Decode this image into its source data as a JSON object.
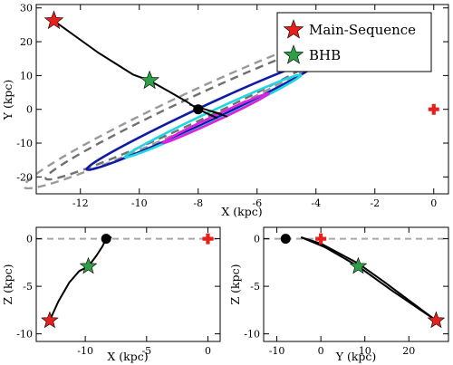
{
  "colors": {
    "main_sequence": "#e8201b",
    "bhb": "#2e9f45",
    "sun": "#e8201b",
    "contour_blue": "#0f1aa8",
    "contour_cyan": "#22d6e0",
    "contour_magenta": "#dd22dd",
    "contour_gray": "#9a9a9a",
    "contour_darkgray": "#707070",
    "orbit": "#000000",
    "zero_line": "#a8a8a8"
  },
  "chart_data": [
    {
      "id": "top",
      "type": "scatter",
      "xlabel": "X (kpc)",
      "ylabel": "Y (kpc)",
      "xlim": [
        -13.5,
        0.5
      ],
      "ylim": [
        -25,
        31
      ],
      "xticks": [
        -12,
        -10,
        -8,
        -6,
        -4,
        -2,
        0
      ],
      "yticks": [
        -20,
        -10,
        0,
        10,
        20,
        30
      ],
      "legend": {
        "position": "top-right",
        "entries": [
          {
            "label": "Main-Sequence",
            "marker": "star",
            "color": "#e8201b"
          },
          {
            "label": "BHB",
            "marker": "star",
            "color": "#2e9f45"
          }
        ]
      },
      "points": [
        {
          "name": "main-sequence-star",
          "x": -12.9,
          "y": 26.2,
          "marker": "star",
          "color": "#e8201b"
        },
        {
          "name": "bhb-star",
          "x": -9.65,
          "y": 8.5,
          "marker": "star",
          "color": "#2e9f45"
        },
        {
          "name": "current-position",
          "x": -8.0,
          "y": 0.0,
          "marker": "circle",
          "color": "#000000"
        },
        {
          "name": "sun",
          "x": 0.0,
          "y": 0.0,
          "marker": "cross",
          "color": "#e8201b"
        }
      ],
      "orbit": [
        [
          -12.9,
          26.2
        ],
        [
          -11.4,
          16.8
        ],
        [
          -10.2,
          10.2
        ],
        [
          -9.65,
          8.5
        ],
        [
          -9.0,
          5.3
        ],
        [
          -8.4,
          2.3
        ],
        [
          -8.0,
          0.0
        ],
        [
          -7.6,
          -1.6
        ],
        [
          -7.35,
          -2.6
        ]
      ],
      "contours": [
        {
          "name": "contour-outer-gray",
          "color": "#9a9a9a",
          "dashed": true,
          "cx": -8.2,
          "cy": 0.2,
          "rx": 6.3,
          "ry": 4.8,
          "tilt": -25
        },
        {
          "name": "contour-darkgray",
          "color": "#707070",
          "dashed": true,
          "cx": -8.1,
          "cy": 0.1,
          "rx": 5.6,
          "ry": 3.6,
          "tilt": -25
        },
        {
          "name": "contour-blue",
          "color": "#0f1aa8",
          "dashed": false,
          "cx": -7.8,
          "cy": -1.6,
          "rx": 4.4,
          "ry": 2.35,
          "tilt": -25
        },
        {
          "name": "contour-cyan",
          "color": "#22d6e0",
          "dashed": false,
          "cx": -7.5,
          "cy": -2.0,
          "rx": 3.3,
          "ry": 1.5,
          "tilt": -25
        },
        {
          "name": "contour-magenta",
          "color": "#dd22dd",
          "dashed": false,
          "cx": -7.4,
          "cy": -2.6,
          "rx": 2.0,
          "ry": 0.8,
          "tilt": -25
        }
      ]
    },
    {
      "id": "bottom-left",
      "type": "scatter",
      "xlabel": "X (kpc)",
      "ylabel": "Z (kpc)",
      "xlim": [
        -14,
        1
      ],
      "ylim": [
        -10.8,
        1.2
      ],
      "xticks": [
        -10,
        -5,
        0
      ],
      "yticks": [
        -10,
        -5,
        0
      ],
      "zero_line": true,
      "points": [
        {
          "name": "main-sequence-star",
          "x": -12.9,
          "y": -8.6,
          "marker": "star",
          "color": "#e8201b"
        },
        {
          "name": "bhb-star",
          "x": -9.75,
          "y": -2.9,
          "marker": "star",
          "color": "#2e9f45"
        },
        {
          "name": "current-position",
          "x": -8.3,
          "y": 0.0,
          "marker": "circle",
          "color": "#000000"
        },
        {
          "name": "sun",
          "x": 0.0,
          "y": 0.0,
          "marker": "cross",
          "color": "#e8201b"
        }
      ],
      "orbit": [
        [
          -12.9,
          -8.6
        ],
        [
          -12.2,
          -6.6
        ],
        [
          -11.3,
          -4.6
        ],
        [
          -10.5,
          -3.4
        ],
        [
          -9.75,
          -2.9
        ],
        [
          -9.1,
          -1.8
        ],
        [
          -8.6,
          -0.8
        ],
        [
          -8.3,
          0.0
        ],
        [
          -7.85,
          0.15
        ]
      ]
    },
    {
      "id": "bottom-right",
      "type": "scatter",
      "xlabel": "Y (kpc)",
      "ylabel": "Z (kpc)",
      "xlim": [
        -13,
        29
      ],
      "ylim": [
        -10.8,
        1.2
      ],
      "xticks": [
        -10,
        0,
        10,
        20
      ],
      "yticks": [
        -10,
        -5,
        0
      ],
      "zero_line": true,
      "points": [
        {
          "name": "main-sequence-star",
          "x": 26.2,
          "y": -8.6,
          "marker": "star",
          "color": "#e8201b"
        },
        {
          "name": "bhb-star",
          "x": 8.5,
          "y": -2.9,
          "marker": "star",
          "color": "#2e9f45"
        },
        {
          "name": "current-position",
          "x": -8.0,
          "y": 0.0,
          "marker": "circle",
          "color": "#000000"
        },
        {
          "name": "sun",
          "x": 0.0,
          "y": 0.0,
          "marker": "cross",
          "color": "#e8201b"
        }
      ],
      "orbit": [
        [
          26.2,
          -8.6
        ],
        [
          16.0,
          -5.4
        ],
        [
          8.5,
          -2.9
        ],
        [
          1.0,
          -0.9
        ],
        [
          -4.5,
          0.15
        ]
      ],
      "orbit2": [
        [
          26.2,
          -8.6
        ],
        [
          14.0,
          -4.4
        ],
        [
          8.5,
          -2.6
        ],
        [
          0.0,
          -0.5
        ],
        [
          -4.5,
          0.15
        ]
      ]
    }
  ]
}
